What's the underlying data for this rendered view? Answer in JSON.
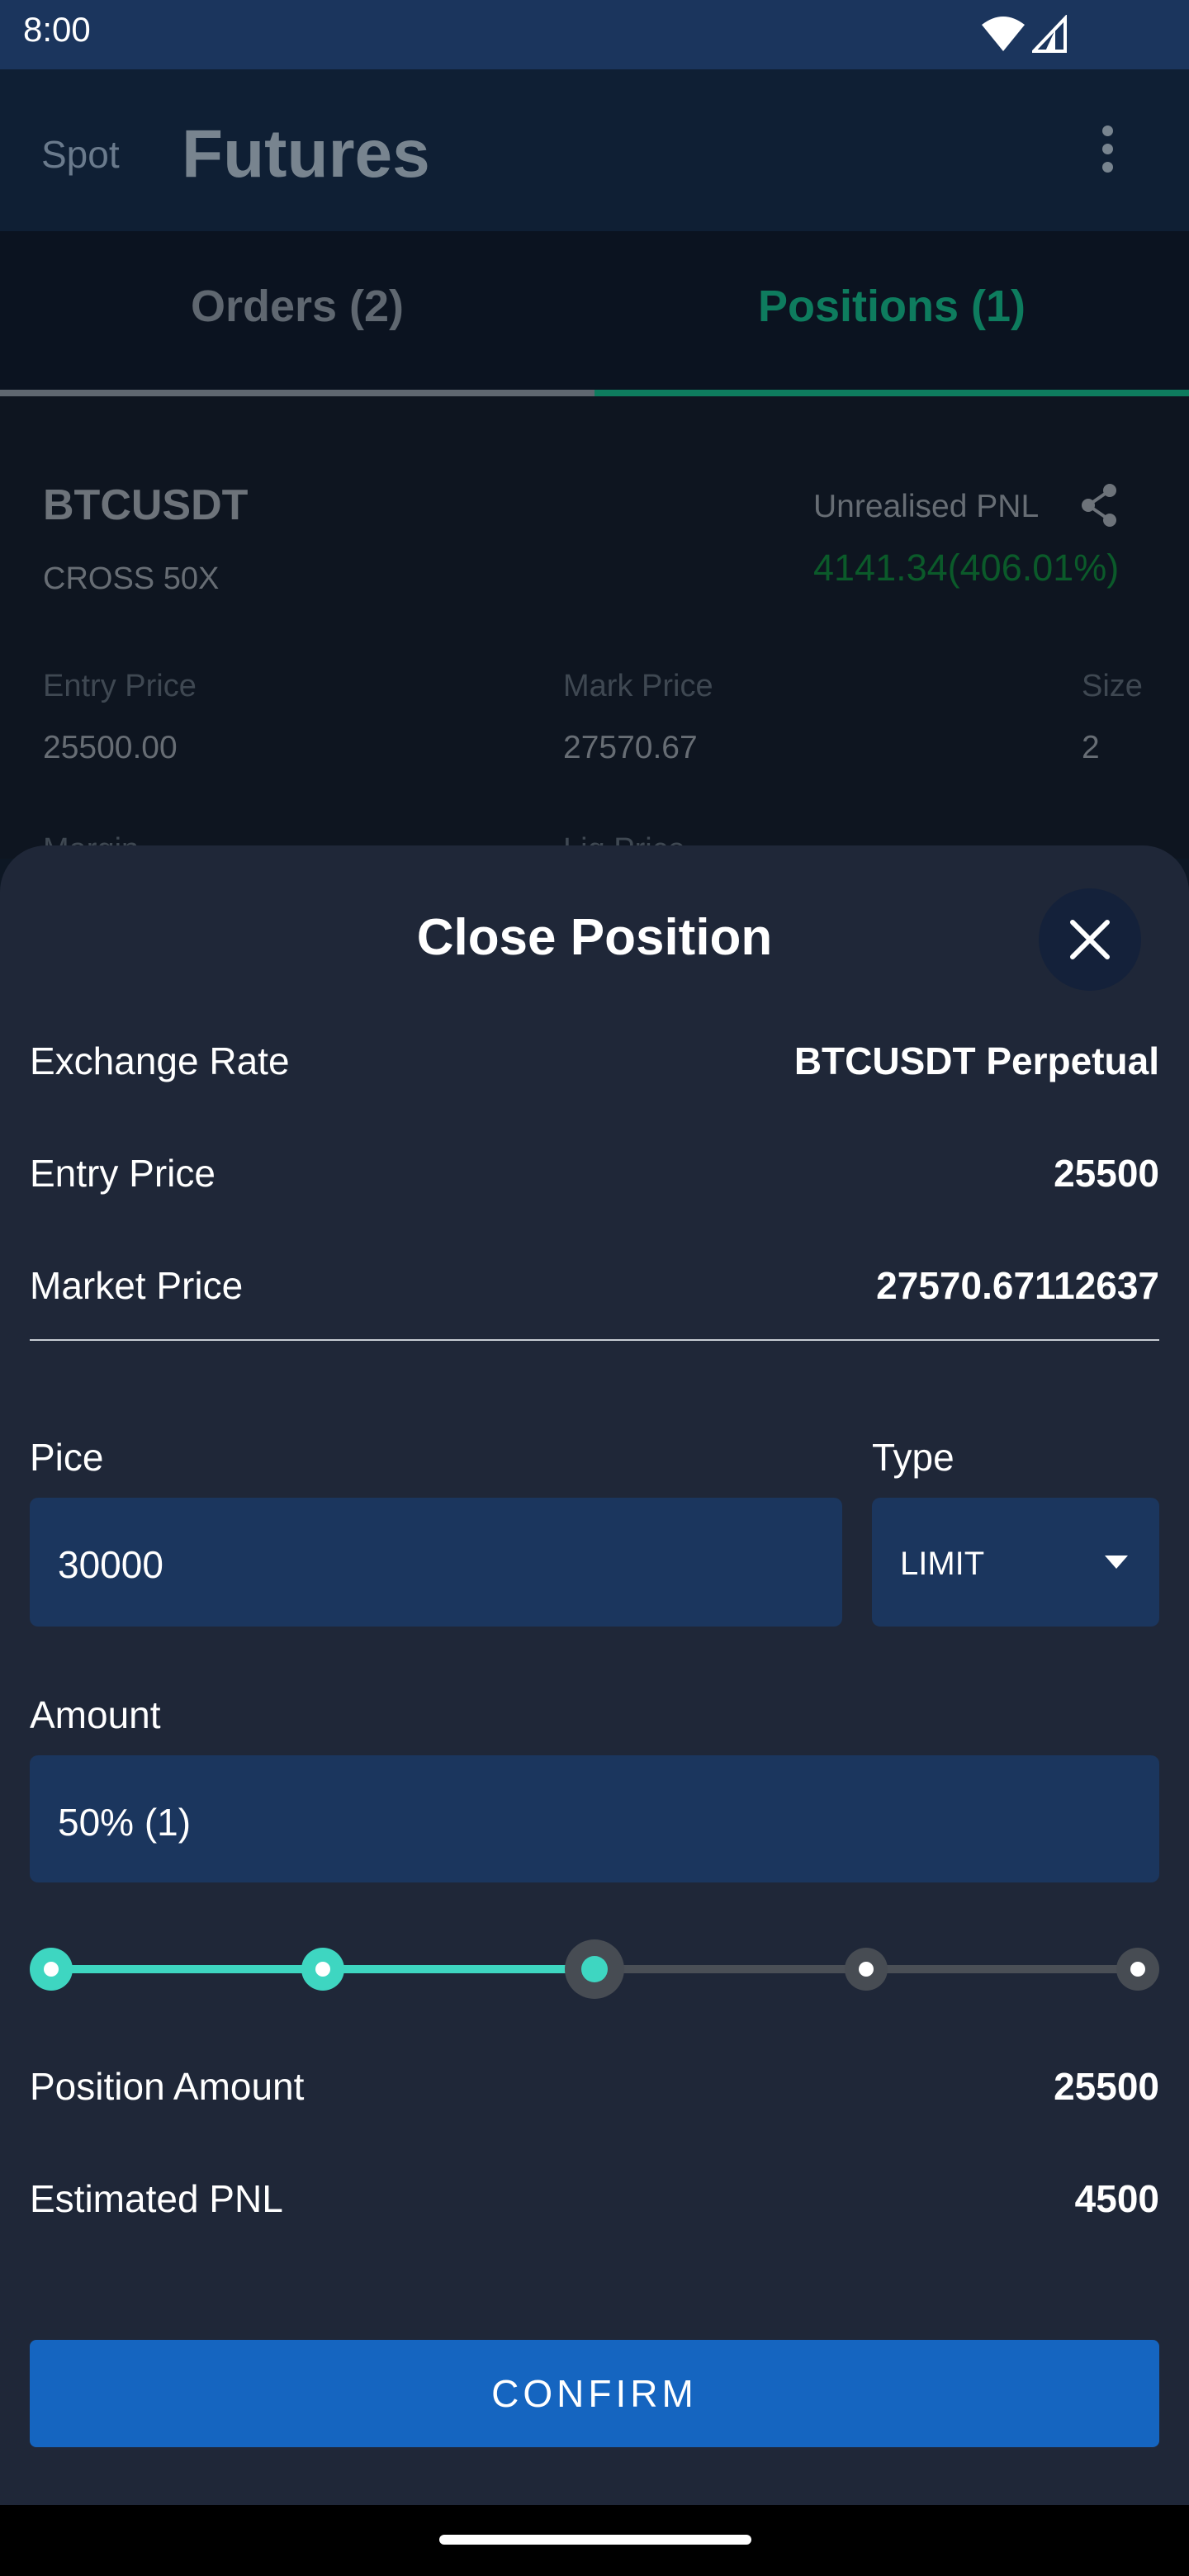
{
  "status_bar": {
    "time": "8:00",
    "icons": [
      "wifi-icon",
      "signal-icon"
    ]
  },
  "app_bar": {
    "spot_tab": "Spot",
    "title": "Futures",
    "menu_icon": "more-vert-icon"
  },
  "tabs": {
    "orders": "Orders (2)",
    "positions": "Positions (1)",
    "active": "positions"
  },
  "position": {
    "symbol": "BTCUSDT",
    "margin_mode": "CROSS 50X",
    "pnl_label": "Unrealised PNL",
    "pnl_value": "4141.34(406.01%)",
    "entry_label": "Entry Price",
    "entry_value": "25500.00",
    "mark_label": "Mark Price",
    "mark_value": "27570.67",
    "size_label": "Size",
    "size_value": "2",
    "margin_label": "Margin",
    "liq_label": "Liq.Price"
  },
  "sheet": {
    "title": "Close Position",
    "close_icon": "close-icon",
    "rows": {
      "exchange_label": "Exchange Rate",
      "exchange_value": "BTCUSDT Perpetual",
      "entry_label": "Entry Price",
      "entry_value": "25500",
      "market_label": "Market Price",
      "market_value": "27570.67112637"
    },
    "price_label": "Pice",
    "price_value": "30000",
    "type_label": "Type",
    "type_value": "LIMIT",
    "amount_label": "Amount",
    "amount_value": "50% (1)",
    "slider": {
      "stops": 5,
      "selected_index": 2,
      "fraction": 0.5
    },
    "position_amount_label": "Position Amount",
    "position_amount_value": "25500",
    "estimated_pnl_label": "Estimated PNL",
    "estimated_pnl_value": "4500",
    "confirm_label": "CONFIRM"
  },
  "colors": {
    "accent": "#3ed6c1",
    "positive": "#0e7c5e",
    "primary_button": "#1565c0",
    "input_bg": "#1b365e",
    "sheet_bg": "#1f2738"
  }
}
